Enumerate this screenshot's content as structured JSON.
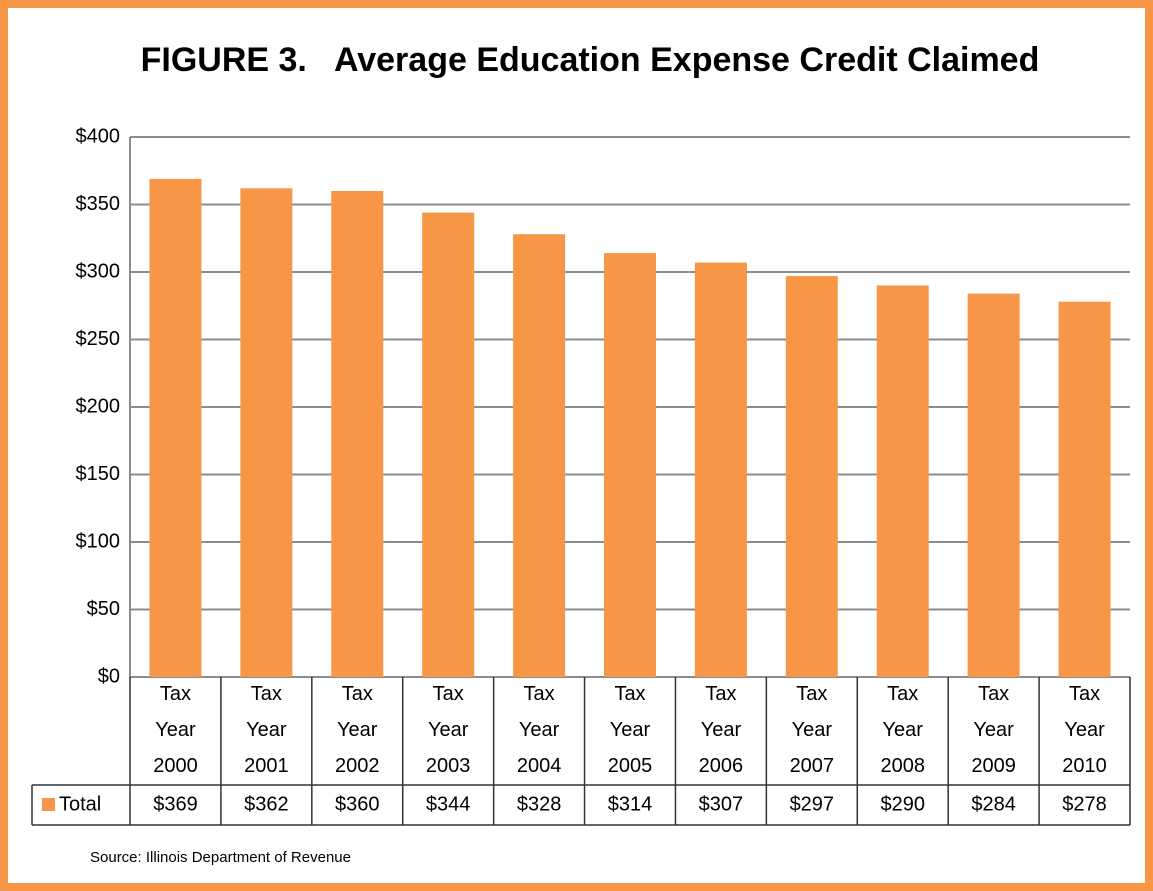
{
  "chart_data": {
    "type": "bar",
    "title": "FIGURE 3.   Average Education Expense Credit Claimed",
    "categories": [
      "Tax Year 2000",
      "Tax Year 2001",
      "Tax Year 2002",
      "Tax Year 2003",
      "Tax Year 2004",
      "Tax Year 2005",
      "Tax Year 2006",
      "Tax Year 2007",
      "Tax Year 2008",
      "Tax Year 2009",
      "Tax Year 2010"
    ],
    "series": [
      {
        "name": "Total",
        "color": "#f79646",
        "values": [
          369,
          362,
          360,
          344,
          328,
          314,
          307,
          297,
          290,
          284,
          278
        ],
        "value_labels": [
          "$369",
          "$362",
          "$360",
          "$344",
          "$328",
          "$314",
          "$307",
          "$297",
          "$290",
          "$284",
          "$278"
        ]
      }
    ],
    "ylim": [
      0,
      400
    ],
    "yticks": [
      {
        "value": 0,
        "label": "$0"
      },
      {
        "value": 50,
        "label": "$50"
      },
      {
        "value": 100,
        "label": "$100"
      },
      {
        "value": 150,
        "label": "$150"
      },
      {
        "value": 200,
        "label": "$200"
      },
      {
        "value": 250,
        "label": "$250"
      },
      {
        "value": 300,
        "label": "$300"
      },
      {
        "value": 350,
        "label": "$350"
      },
      {
        "value": 400,
        "label": "$400"
      }
    ],
    "grid": true,
    "data_table": true,
    "source": "Source: Illinois Department of Revenue"
  }
}
